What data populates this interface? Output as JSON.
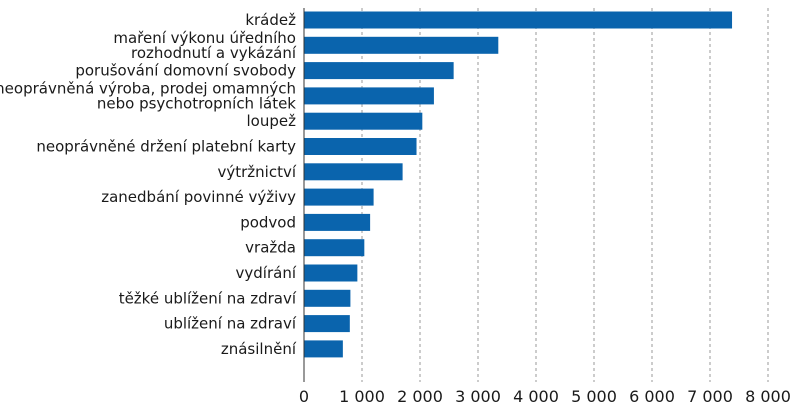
{
  "chart_data": {
    "type": "bar",
    "orientation": "horizontal",
    "categories": [
      [
        "krádež"
      ],
      [
        "maření výkonu úředního",
        "rozhodnutí a vykázání"
      ],
      [
        "porušování domovní svobody"
      ],
      [
        "neoprávněná výroba, prodej omamných",
        "nebo psychotropních látek"
      ],
      [
        "loupež"
      ],
      [
        "neoprávněné držení platební karty"
      ],
      [
        "výtržnictví"
      ],
      [
        "zanedbání povinné výživy"
      ],
      [
        "podvod"
      ],
      [
        "vražda"
      ],
      [
        "vydírání"
      ],
      [
        "těžké ublížení na zdraví"
      ],
      [
        "ublížení na zdraví"
      ],
      [
        "znásilnění"
      ]
    ],
    "values": [
      7380,
      3350,
      2580,
      2240,
      2040,
      1940,
      1700,
      1200,
      1140,
      1040,
      920,
      800,
      790,
      670
    ],
    "xlim": [
      0,
      8000
    ],
    "ticks": [
      0,
      1000,
      2000,
      3000,
      4000,
      5000,
      6000,
      7000,
      8000
    ],
    "tick_labels": [
      "0",
      "1 000",
      "2 000",
      "3 000",
      "4 000",
      "5 000",
      "6 000",
      "7 000",
      "8 000"
    ],
    "title": "",
    "xlabel": "",
    "ylabel": "",
    "grid": "vertical dashed",
    "bar_color": "#0a64ad"
  }
}
